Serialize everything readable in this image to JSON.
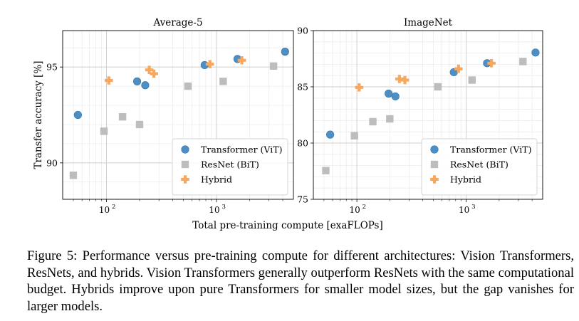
{
  "chart_data": [
    {
      "type": "scatter",
      "title": "Average-5",
      "ylabel": "Transfer accuracy [%]",
      "xscale": "log",
      "xlim": [
        40,
        5000
      ],
      "ylim": [
        88.1,
        96.9
      ],
      "yticks": [
        90,
        95
      ],
      "legend_position": "lower-right",
      "series": [
        {
          "name": "Transformer (ViT)",
          "color": "#4d8ec4",
          "marker": "circle",
          "points": [
            [
              55,
              92.5
            ],
            [
              190,
              94.25
            ],
            [
              225,
              94.05
            ],
            [
              780,
              95.1
            ],
            [
              1550,
              95.42
            ],
            [
              4200,
              95.8
            ]
          ]
        },
        {
          "name": "ResNet (BiT)",
          "color": "#bdbdbd",
          "marker": "square",
          "points": [
            [
              50,
              89.35
            ],
            [
              95,
              91.65
            ],
            [
              140,
              92.4
            ],
            [
              200,
              92.0
            ],
            [
              550,
              94.0
            ],
            [
              1150,
              94.25
            ],
            [
              3300,
              95.05
            ]
          ]
        },
        {
          "name": "Hybrid",
          "color": "#f7a85e",
          "marker": "plus",
          "points": [
            [
              105,
              94.3
            ],
            [
              245,
              94.85
            ],
            [
              270,
              94.65
            ],
            [
              870,
              95.15
            ],
            [
              1700,
              95.35
            ]
          ]
        }
      ]
    },
    {
      "type": "scatter",
      "title": "ImageNet",
      "xscale": "log",
      "xlim": [
        40,
        5000
      ],
      "ylim": [
        75,
        90
      ],
      "yticks": [
        75,
        80,
        85,
        90
      ],
      "legend_position": "lower-right",
      "series": [
        {
          "name": "Transformer (ViT)",
          "color": "#4d8ec4",
          "marker": "circle",
          "points": [
            [
              57,
              80.75
            ],
            [
              195,
              84.4
            ],
            [
              225,
              84.15
            ],
            [
              770,
              86.3
            ],
            [
              1550,
              87.1
            ],
            [
              4300,
              88.05
            ]
          ]
        },
        {
          "name": "ResNet (BiT)",
          "color": "#bdbdbd",
          "marker": "square",
          "points": [
            [
              52,
              77.55
            ],
            [
              95,
              80.65
            ],
            [
              140,
              81.9
            ],
            [
              200,
              82.15
            ],
            [
              550,
              85.0
            ],
            [
              1130,
              85.6
            ],
            [
              3300,
              87.25
            ]
          ]
        },
        {
          "name": "Hybrid",
          "color": "#f7a85e",
          "marker": "plus",
          "points": [
            [
              105,
              84.95
            ],
            [
              245,
              85.7
            ],
            [
              275,
              85.6
            ],
            [
              850,
              86.6
            ],
            [
              1700,
              87.1
            ]
          ]
        }
      ]
    }
  ],
  "shared": {
    "xlabel": "Total pre-training compute [exaFLOPs]",
    "xtick_base": "10",
    "xticks": [
      {
        "value": 100,
        "exp": "2"
      },
      {
        "value": 1000,
        "exp": "3"
      }
    ]
  },
  "caption": "Figure 5: Performance versus pre-training compute for different architectures: Vision Transformers, ResNets, and hybrids. Vision Transformers generally outperform ResNets with the same computational budget. Hybrids improve upon pure Transformers for smaller model sizes, but the gap vanishes for larger models."
}
